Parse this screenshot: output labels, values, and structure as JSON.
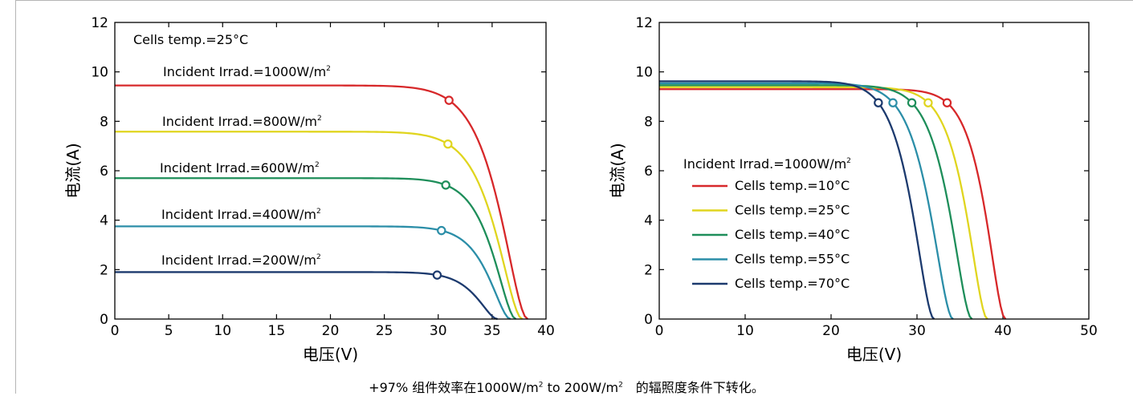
{
  "chart_data": [
    {
      "type": "line",
      "xlabel": "电压(V)",
      "ylabel": "电流(A)",
      "xlim": [
        0,
        40
      ],
      "ylim": [
        0,
        12
      ],
      "x_ticks": [
        "0",
        "5",
        "10",
        "15",
        "20",
        "25",
        "30",
        "35",
        "40"
      ],
      "y_ticks": [
        "0",
        "2",
        "4",
        "6",
        "8",
        "10",
        "12"
      ],
      "annotations": [
        {
          "text": "Cells temp.=25°C"
        }
      ],
      "series": [
        {
          "name": "Incident Irrad.=1000W/m",
          "sup": "2",
          "color": "#d7282a",
          "isc": 9.45,
          "voc": 38.3,
          "mpp": [
            31.0,
            8.85
          ]
        },
        {
          "name": "Incident Irrad.=800W/m",
          "sup": "2",
          "color": "#e0d51f",
          "isc": 7.58,
          "voc": 37.8,
          "mpp": [
            30.9,
            7.08
          ]
        },
        {
          "name": "Incident Irrad.=600W/m",
          "sup": "2",
          "color": "#1e8e5a",
          "isc": 5.7,
          "voc": 37.2,
          "mpp": [
            30.7,
            5.42
          ]
        },
        {
          "name": "Incident Irrad.=400W/m",
          "sup": "2",
          "color": "#2b8ea8",
          "isc": 3.75,
          "voc": 36.7,
          "mpp": [
            30.3,
            3.58
          ]
        },
        {
          "name": "Incident Irrad.=200W/m",
          "sup": "2",
          "color": "#1c3a6e",
          "isc": 1.9,
          "voc": 35.5,
          "mpp": [
            29.9,
            1.78
          ]
        }
      ]
    },
    {
      "type": "line",
      "xlabel": "电压(V)",
      "ylabel": "电流(A)",
      "xlim": [
        0,
        50
      ],
      "ylim": [
        0,
        12
      ],
      "x_ticks": [
        "0",
        "10",
        "20",
        "30",
        "40",
        "50"
      ],
      "y_ticks": [
        "0",
        "2",
        "4",
        "6",
        "8",
        "10",
        "12"
      ],
      "legend_title": {
        "text": "Incident Irrad.=1000W/m",
        "sup": "2"
      },
      "legend_position": "center-left",
      "series": [
        {
          "name": "Cells temp.=10°C",
          "color": "#d7282a",
          "isc": 9.3,
          "voc": 40.3,
          "mpp": [
            33.5,
            8.75
          ]
        },
        {
          "name": "Cells temp.=25°C",
          "color": "#e0d51f",
          "isc": 9.38,
          "voc": 38.2,
          "mpp": [
            31.3,
            8.75
          ]
        },
        {
          "name": "Cells temp.=40°C",
          "color": "#1e8e5a",
          "isc": 9.46,
          "voc": 36.4,
          "mpp": [
            29.4,
            8.75
          ]
        },
        {
          "name": "Cells temp.=55°C",
          "color": "#2b8ea8",
          "isc": 9.54,
          "voc": 34.2,
          "mpp": [
            27.2,
            8.75
          ]
        },
        {
          "name": "Cells temp.=70°C",
          "color": "#1c3a6e",
          "isc": 9.62,
          "voc": 32.0,
          "mpp": [
            25.5,
            8.75
          ]
        }
      ]
    }
  ],
  "caption": {
    "prefix": "+97% 组件效率在1000W/m",
    "sup1": "2",
    "middle": " to 200W/m",
    "sup2": "2",
    "suffix": "　的辐照度条件下转化。"
  }
}
